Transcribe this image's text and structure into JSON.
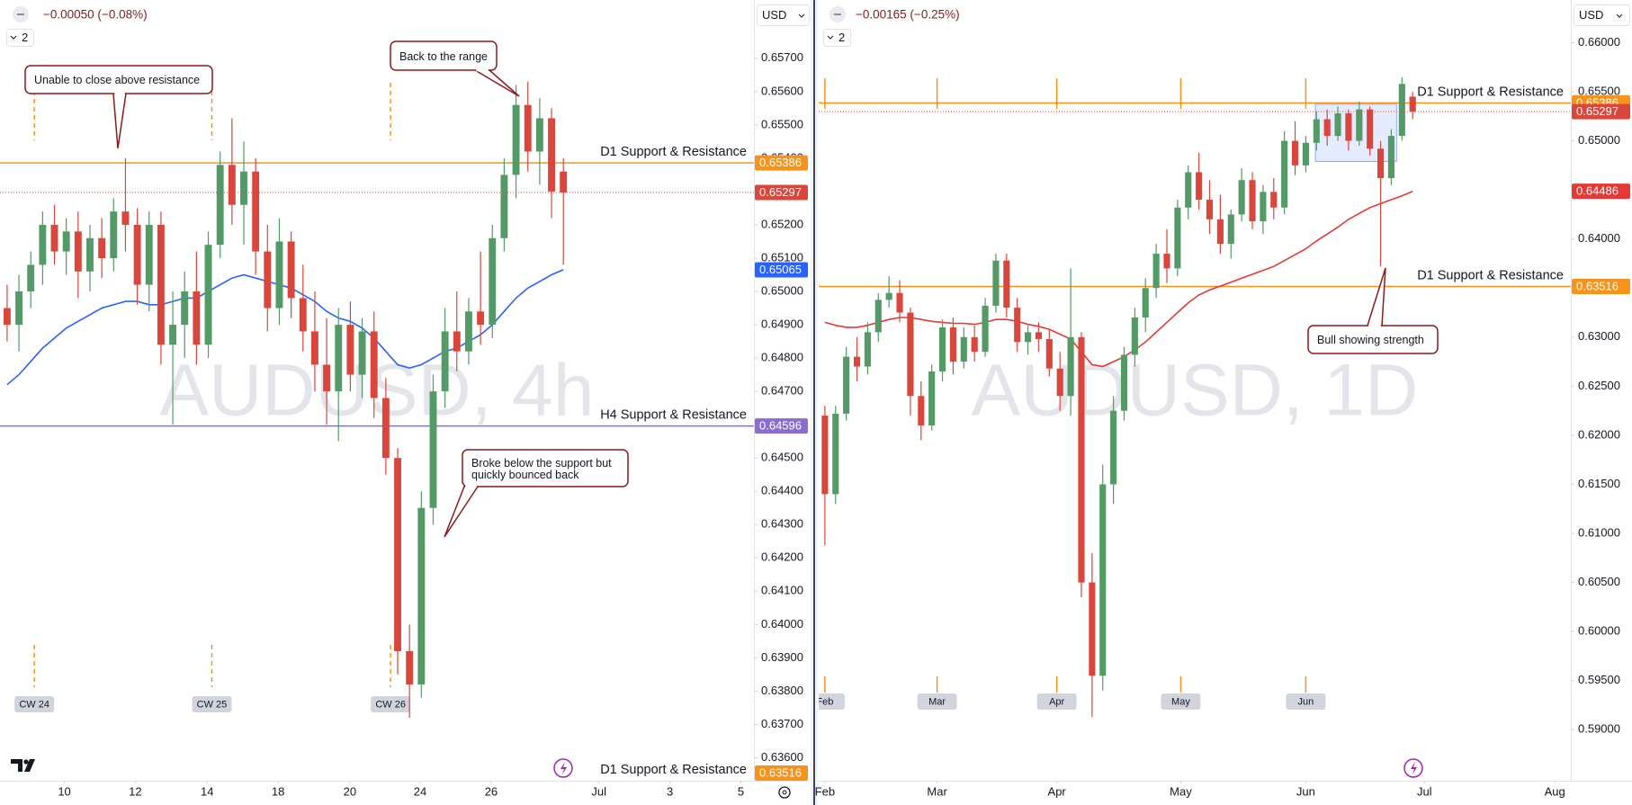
{
  "chart_data": [
    {
      "type": "candlestick",
      "watermark": "AUDUSD, 4h",
      "change": "−0.00050 (−0.08%)",
      "pane_count": 2,
      "currency": "USD",
      "up_color": "#539a67",
      "down_color": "#d9473c",
      "xlim": [
        -0.6,
        63.1
      ],
      "ylim": [
        0.63531,
        0.65875
      ],
      "yticks": [
        {
          "value": 0.636,
          "label": "0.63600"
        },
        {
          "value": 0.637,
          "label": "0.63700"
        },
        {
          "value": 0.638,
          "label": "0.63800"
        },
        {
          "value": 0.639,
          "label": "0.63900"
        },
        {
          "value": 0.64,
          "label": "0.64000"
        },
        {
          "value": 0.641,
          "label": "0.64100"
        },
        {
          "value": 0.642,
          "label": "0.64200"
        },
        {
          "value": 0.643,
          "label": "0.64300"
        },
        {
          "value": 0.644,
          "label": "0.64400"
        },
        {
          "value": 0.645,
          "label": "0.64500"
        },
        {
          "value": 0.646,
          "label": "0.64600"
        },
        {
          "value": 0.647,
          "label": "0.64700"
        },
        {
          "value": 0.648,
          "label": "0.64800"
        },
        {
          "value": 0.649,
          "label": "0.64900"
        },
        {
          "value": 0.65,
          "label": "0.65000"
        },
        {
          "value": 0.651,
          "label": "0.65100"
        },
        {
          "value": 0.652,
          "label": "0.65200"
        },
        {
          "value": 0.653,
          "label": "0.65300"
        },
        {
          "value": 0.654,
          "label": "0.65400"
        },
        {
          "value": 0.655,
          "label": "0.65500"
        },
        {
          "value": 0.656,
          "label": "0.65600"
        },
        {
          "value": 0.657,
          "label": "0.65700"
        }
      ],
      "xticks": [
        {
          "value": 4.84,
          "label": "10"
        },
        {
          "value": 10.83,
          "label": "12"
        },
        {
          "value": 16.9,
          "label": "14"
        },
        {
          "value": 22.9,
          "label": "18"
        },
        {
          "value": 28.96,
          "label": "20"
        },
        {
          "value": 34.9,
          "label": "24"
        },
        {
          "value": 40.9,
          "label": "26"
        },
        {
          "value": 50,
          "label": "Jul"
        },
        {
          "value": 56,
          "label": "3"
        },
        {
          "value": 62,
          "label": "5"
        }
      ],
      "markers": [
        {
          "value": 2.3,
          "label": "CW 24"
        },
        {
          "value": 17.3,
          "label": "CW 25"
        },
        {
          "value": 32.4,
          "label": "CW 26"
        }
      ],
      "ohlc": [
        [
          0.6495,
          0.6502,
          0.6485,
          0.649
        ],
        [
          0.649,
          0.6505,
          0.6482,
          0.65
        ],
        [
          0.65,
          0.6512,
          0.6495,
          0.6508
        ],
        [
          0.6508,
          0.6524,
          0.6502,
          0.652
        ],
        [
          0.652,
          0.6526,
          0.6508,
          0.6512
        ],
        [
          0.6512,
          0.6522,
          0.6505,
          0.6518
        ],
        [
          0.6518,
          0.6524,
          0.6498,
          0.6506
        ],
        [
          0.6506,
          0.652,
          0.65,
          0.6516
        ],
        [
          0.6516,
          0.6522,
          0.6504,
          0.651
        ],
        [
          0.651,
          0.6528,
          0.6506,
          0.6524
        ],
        [
          0.6524,
          0.654,
          0.6512,
          0.652
        ],
        [
          0.652,
          0.6525,
          0.6496,
          0.6502
        ],
        [
          0.6502,
          0.6524,
          0.6494,
          0.652
        ],
        [
          0.652,
          0.6524,
          0.6478,
          0.6484
        ],
        [
          0.6484,
          0.65,
          0.646,
          0.649
        ],
        [
          0.649,
          0.6506,
          0.648,
          0.65
        ],
        [
          0.65,
          0.6512,
          0.6478,
          0.6484
        ],
        [
          0.6484,
          0.6518,
          0.648,
          0.6514
        ],
        [
          0.6514,
          0.6542,
          0.651,
          0.6538
        ],
        [
          0.6538,
          0.6552,
          0.652,
          0.6526
        ],
        [
          0.6526,
          0.6545,
          0.6514,
          0.6536
        ],
        [
          0.6536,
          0.654,
          0.6505,
          0.6512
        ],
        [
          0.6512,
          0.652,
          0.6488,
          0.6495
        ],
        [
          0.6495,
          0.6522,
          0.649,
          0.6515
        ],
        [
          0.6515,
          0.6518,
          0.6492,
          0.6498
        ],
        [
          0.6498,
          0.6508,
          0.6482,
          0.6488
        ],
        [
          0.6488,
          0.65,
          0.647,
          0.6478
        ],
        [
          0.6478,
          0.6492,
          0.646,
          0.647
        ],
        [
          0.647,
          0.6495,
          0.6455,
          0.649
        ],
        [
          0.649,
          0.6497,
          0.647,
          0.6475
        ],
        [
          0.6475,
          0.6492,
          0.6468,
          0.6488
        ],
        [
          0.6488,
          0.6494,
          0.6462,
          0.6468
        ],
        [
          0.6468,
          0.6474,
          0.6445,
          0.645
        ],
        [
          0.645,
          0.6453,
          0.6385,
          0.6392
        ],
        [
          0.6392,
          0.64,
          0.6372,
          0.6382
        ],
        [
          0.6382,
          0.644,
          0.6378,
          0.6435
        ],
        [
          0.6435,
          0.6475,
          0.643,
          0.647
        ],
        [
          0.647,
          0.6495,
          0.6465,
          0.6488
        ],
        [
          0.6488,
          0.65,
          0.6476,
          0.6482
        ],
        [
          0.6482,
          0.6498,
          0.6478,
          0.6494
        ],
        [
          0.6494,
          0.6512,
          0.6484,
          0.649
        ],
        [
          0.649,
          0.652,
          0.6486,
          0.6516
        ],
        [
          0.6516,
          0.654,
          0.6512,
          0.6535
        ],
        [
          0.6535,
          0.6562,
          0.6528,
          0.6556
        ],
        [
          0.6556,
          0.6563,
          0.6536,
          0.6542
        ],
        [
          0.6542,
          0.6558,
          0.6532,
          0.6552
        ],
        [
          0.6552,
          0.6555,
          0.6522,
          0.653
        ],
        [
          0.6536,
          0.654,
          0.6508,
          0.65297
        ]
      ],
      "moving_average": {
        "color": "#2962ff",
        "values": [
          0.6472,
          0.6475,
          0.6479,
          0.6483,
          0.6486,
          0.6489,
          0.6491,
          0.6493,
          0.6495,
          0.6496,
          0.6497,
          0.6497,
          0.6496,
          0.6496,
          0.6497,
          0.6498,
          0.6498,
          0.65,
          0.6502,
          0.6504,
          0.6505,
          0.6504,
          0.6503,
          0.6502,
          0.6501,
          0.6499,
          0.6497,
          0.6494,
          0.6492,
          0.6491,
          0.6489,
          0.6486,
          0.6482,
          0.6478,
          0.6477,
          0.6478,
          0.648,
          0.6482,
          0.6483,
          0.6485,
          0.6487,
          0.649,
          0.6494,
          0.6498,
          0.6501,
          0.6503,
          0.6505,
          0.65065
        ]
      },
      "levels": [
        {
          "label": "D1 Support & Resistance",
          "value": 0.65386,
          "color": "#f7931a"
        },
        {
          "label": "H4 Support & Resistance",
          "value": 0.64596,
          "color": "#8c6cd1"
        },
        {
          "label": "D1 Support & Resistance",
          "value": 0.63516,
          "color": "#f7931a"
        }
      ],
      "annotations": [
        "Unable to close above resistance",
        "Back to the range",
        "Broke below the support but quickly bounced back"
      ]
    },
    {
      "type": "candlestick",
      "watermark": "AUDUSD, 1D",
      "change": "−0.00165 (−0.25%)",
      "pane_count": 2,
      "currency": "USD",
      "up_color": "#539a67",
      "down_color": "#d9473c",
      "xlim": [
        -0.58,
        69.8
      ],
      "ylim": [
        0.5848,
        0.66435
      ],
      "yticks": [
        {
          "value": 0.59,
          "label": "0.59000"
        },
        {
          "value": 0.595,
          "label": "0.59500"
        },
        {
          "value": 0.6,
          "label": "0.60000"
        },
        {
          "value": 0.605,
          "label": "0.60500"
        },
        {
          "value": 0.61,
          "label": "0.61000"
        },
        {
          "value": 0.615,
          "label": "0.61500"
        },
        {
          "value": 0.62,
          "label": "0.62000"
        },
        {
          "value": 0.625,
          "label": "0.62500"
        },
        {
          "value": 0.63,
          "label": "0.63000"
        },
        {
          "value": 0.635,
          "label": "0.63500"
        },
        {
          "value": 0.64,
          "label": "0.64000"
        },
        {
          "value": 0.645,
          "label": "0.64500"
        },
        {
          "value": 0.65,
          "label": "0.65000"
        },
        {
          "value": 0.655,
          "label": "0.65500"
        },
        {
          "value": 0.66,
          "label": "0.66000"
        }
      ],
      "xticks": [
        {
          "value": 0,
          "label": "Feb"
        },
        {
          "value": 10.5,
          "label": "Mar"
        },
        {
          "value": 21.7,
          "label": "Apr"
        },
        {
          "value": 33.3,
          "label": "May"
        },
        {
          "value": 45,
          "label": "Jun"
        },
        {
          "value": 56.1,
          "label": "Jul"
        },
        {
          "value": 68.3,
          "label": "Aug"
        }
      ],
      "markers": [
        {
          "value": 0,
          "label": "Feb"
        },
        {
          "value": 10.5,
          "label": "Mar"
        },
        {
          "value": 21.7,
          "label": "Apr"
        },
        {
          "value": 33.3,
          "label": "May"
        },
        {
          "value": 45,
          "label": "Jun"
        }
      ],
      "ohlc": [
        [
          0.622,
          0.623,
          0.6088,
          0.614
        ],
        [
          0.614,
          0.623,
          0.613,
          0.6222
        ],
        [
          0.6222,
          0.629,
          0.6215,
          0.628
        ],
        [
          0.628,
          0.63,
          0.6255,
          0.627
        ],
        [
          0.627,
          0.6315,
          0.6262,
          0.6305
        ],
        [
          0.6305,
          0.6345,
          0.6295,
          0.6338
        ],
        [
          0.6338,
          0.6362,
          0.633,
          0.6345
        ],
        [
          0.6345,
          0.6358,
          0.6315,
          0.6325
        ],
        [
          0.6325,
          0.633,
          0.622,
          0.624
        ],
        [
          0.624,
          0.6255,
          0.6195,
          0.621
        ],
        [
          0.621,
          0.6272,
          0.6205,
          0.6265
        ],
        [
          0.6265,
          0.6318,
          0.6255,
          0.631
        ],
        [
          0.631,
          0.632,
          0.6262,
          0.6275
        ],
        [
          0.6275,
          0.631,
          0.6268,
          0.63
        ],
        [
          0.63,
          0.6312,
          0.6275,
          0.6285
        ],
        [
          0.6285,
          0.634,
          0.628,
          0.6332
        ],
        [
          0.6332,
          0.6385,
          0.6325,
          0.6378
        ],
        [
          0.6378,
          0.6385,
          0.632,
          0.633
        ],
        [
          0.633,
          0.634,
          0.6285,
          0.6295
        ],
        [
          0.6295,
          0.6312,
          0.6282,
          0.6305
        ],
        [
          0.6305,
          0.6315,
          0.6285,
          0.6298
        ],
        [
          0.6298,
          0.6308,
          0.626,
          0.6268
        ],
        [
          0.6268,
          0.6285,
          0.6225,
          0.624
        ],
        [
          0.624,
          0.637,
          0.622,
          0.63
        ],
        [
          0.63,
          0.6305,
          0.6035,
          0.605
        ],
        [
          0.605,
          0.608,
          0.5913,
          0.5955
        ],
        [
          0.5955,
          0.617,
          0.594,
          0.615
        ],
        [
          0.615,
          0.624,
          0.613,
          0.6225
        ],
        [
          0.6225,
          0.629,
          0.6215,
          0.6282
        ],
        [
          0.6282,
          0.633,
          0.627,
          0.632
        ],
        [
          0.632,
          0.636,
          0.6305,
          0.635
        ],
        [
          0.635,
          0.6395,
          0.634,
          0.6385
        ],
        [
          0.6385,
          0.641,
          0.6355,
          0.637
        ],
        [
          0.637,
          0.644,
          0.6362,
          0.6432
        ],
        [
          0.6432,
          0.6475,
          0.642,
          0.6468
        ],
        [
          0.6468,
          0.6488,
          0.643,
          0.644
        ],
        [
          0.644,
          0.646,
          0.6405,
          0.642
        ],
        [
          0.642,
          0.6445,
          0.6385,
          0.6395
        ],
        [
          0.6395,
          0.643,
          0.638,
          0.6425
        ],
        [
          0.6425,
          0.6472,
          0.6418,
          0.646
        ],
        [
          0.646,
          0.6468,
          0.641,
          0.6418
        ],
        [
          0.6418,
          0.6455,
          0.6405,
          0.6448
        ],
        [
          0.6448,
          0.6462,
          0.642,
          0.6432
        ],
        [
          0.6432,
          0.651,
          0.6425,
          0.65
        ],
        [
          0.65,
          0.652,
          0.6465,
          0.6475
        ],
        [
          0.6475,
          0.6505,
          0.6468,
          0.6498
        ],
        [
          0.6498,
          0.653,
          0.649,
          0.6522
        ],
        [
          0.6522,
          0.6532,
          0.6495,
          0.6505
        ],
        [
          0.6505,
          0.6535,
          0.65,
          0.6528
        ],
        [
          0.6528,
          0.6532,
          0.649,
          0.65
        ],
        [
          0.65,
          0.654,
          0.6495,
          0.6532
        ],
        [
          0.6532,
          0.6535,
          0.6485,
          0.6492
        ],
        [
          0.6492,
          0.65,
          0.6372,
          0.6462
        ],
        [
          0.6462,
          0.6512,
          0.6455,
          0.6505
        ],
        [
          0.6505,
          0.6565,
          0.65,
          0.6558
        ],
        [
          0.6545,
          0.655,
          0.6522,
          0.65297
        ]
      ],
      "moving_average": {
        "color": "#e53935",
        "values": [
          0.6315,
          0.6312,
          0.631,
          0.631,
          0.6312,
          0.6315,
          0.6318,
          0.632,
          0.632,
          0.6318,
          0.6316,
          0.6315,
          0.6314,
          0.6314,
          0.6313,
          0.6315,
          0.6318,
          0.6318,
          0.6316,
          0.6313,
          0.6311,
          0.6308,
          0.6303,
          0.6298,
          0.6285,
          0.6272,
          0.627,
          0.6275,
          0.628,
          0.6287,
          0.6295,
          0.6305,
          0.6315,
          0.6325,
          0.6335,
          0.6343,
          0.6348,
          0.6352,
          0.6356,
          0.636,
          0.6364,
          0.6368,
          0.6372,
          0.6378,
          0.6384,
          0.639,
          0.6398,
          0.6405,
          0.6412,
          0.642,
          0.6426,
          0.6432,
          0.6436,
          0.644,
          0.6444,
          0.64486
        ]
      },
      "levels": [
        {
          "label": "D1 Support & Resistance",
          "value": 0.65386,
          "color": "#f7931a"
        },
        {
          "label": "D1 Support & Resistance",
          "value": 0.63516,
          "color": "#f7931a"
        }
      ],
      "range_box": {
        "x": [
          45.9,
          53.5
        ],
        "y": [
          0.6479,
          0.65374
        ]
      },
      "annotations": [
        "Bull showing strength"
      ]
    }
  ]
}
